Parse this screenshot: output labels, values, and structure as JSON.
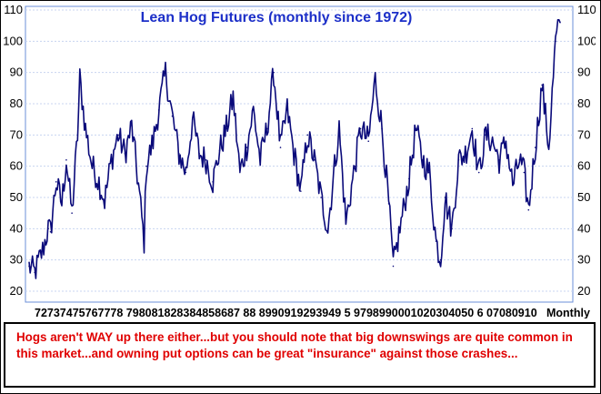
{
  "chart_data": {
    "type": "line",
    "title": "Lean Hog Futures (monthly since 1972)",
    "frequency_label": "Monthly",
    "ylim": [
      20,
      110
    ],
    "y_ticks": [
      20,
      30,
      40,
      50,
      60,
      70,
      80,
      90,
      100,
      110
    ],
    "y_tick_labels": [
      "20",
      "30",
      "40",
      "50",
      "60",
      "70",
      "80",
      "90",
      "100",
      "110"
    ],
    "x_tick_labels": [
      "72",
      "73",
      "74",
      "75",
      "76",
      "77",
      "78",
      "79",
      "80",
      "81",
      "82",
      "83",
      "84",
      "85",
      "86",
      "87",
      "88",
      "89",
      "90",
      "91",
      "92",
      "93",
      "94",
      "95",
      "96",
      "97",
      "98",
      "99",
      "00",
      "01",
      "02",
      "03",
      "04",
      "05",
      "06",
      "07",
      "08",
      "09",
      "10"
    ],
    "x_tick_text": "72737475767778 798081828384858687 88 8990919293949 5 9798990001020304050 6 07080910",
    "grid": true,
    "line_color": "#0a0a7a",
    "series": [
      {
        "x": [
          "1972-01",
          "1972-06",
          "1973-01",
          "1973-06",
          "1973-08",
          "1974-01",
          "1974-06",
          "1974-10",
          "1975-03",
          "1975-08",
          "1975-10",
          "1976-03",
          "1976-09",
          "1977-03",
          "1977-08",
          "1978-02",
          "1978-08",
          "1979-02",
          "1979-08",
          "1980-02",
          "1980-07",
          "1980-09",
          "1981-03",
          "1981-08",
          "1982-02",
          "1982-08",
          "1983-02",
          "1983-08",
          "1984-02",
          "1984-08",
          "1985-02",
          "1985-08",
          "1986-02",
          "1986-08",
          "1987-02",
          "1987-08",
          "1988-02",
          "1988-08",
          "1989-02",
          "1989-08",
          "1990-02",
          "1990-08",
          "1991-02",
          "1991-08",
          "1992-02",
          "1992-08",
          "1993-02",
          "1993-08",
          "1994-02",
          "1994-08",
          "1994-12",
          "1995-06",
          "1996-02",
          "1996-07",
          "1997-02",
          "1997-08",
          "1998-02",
          "1998-08",
          "1998-12",
          "1999-06",
          "2000-02",
          "2000-08",
          "2001-02",
          "2001-08",
          "2002-02",
          "2002-06",
          "2002-10",
          "2003-04",
          "2003-10",
          "2004-04",
          "2004-10",
          "2005-04",
          "2005-10",
          "2006-04",
          "2006-10",
          "2007-04",
          "2007-10",
          "2008-04",
          "2008-08",
          "2008-12",
          "2009-06",
          "2009-12",
          "2010-06",
          "2010-12",
          "2011-04"
        ],
        "y": [
          28,
          26,
          33,
          40,
          39,
          55,
          48,
          62,
          45,
          70,
          88,
          72,
          60,
          55,
          49,
          62,
          70,
          64,
          73,
          54,
          36,
          60,
          68,
          78,
          90,
          76,
          64,
          58,
          75,
          64,
          62,
          55,
          65,
          72,
          82,
          58,
          66,
          78,
          62,
          72,
          90,
          66,
          78,
          64,
          52,
          70,
          62,
          50,
          40,
          60,
          72,
          42,
          60,
          72,
          68,
          88,
          72,
          48,
          28,
          40,
          56,
          72,
          62,
          58,
          36,
          30,
          50,
          40,
          62,
          64,
          72,
          58,
          70,
          68,
          62,
          68,
          54,
          62,
          58,
          46,
          66,
          86,
          66,
          100,
          106
        ]
      }
    ]
  },
  "caption": "Hogs aren't WAY up there either...but you should note that big downswings are quite common in this market...and owning put options can be great \"insurance\" against those crashes..."
}
